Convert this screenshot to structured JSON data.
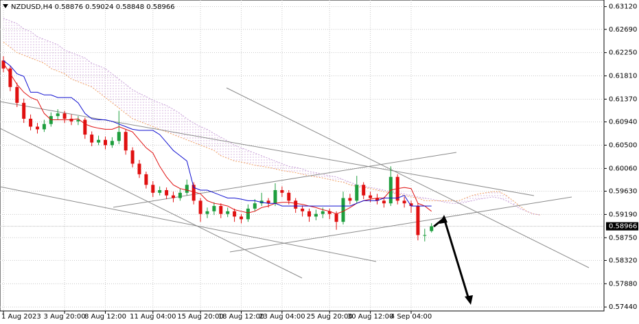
{
  "chart_data": {
    "type": "candlestick",
    "title": "NZDUSD,H4 0.58876 0.59024 0.58848 0.58966",
    "categories": [
      "1 Aug 2023",
      null,
      null,
      null,
      null,
      null,
      null,
      null,
      null,
      "3 Aug 20:00",
      null,
      null,
      null,
      null,
      null,
      "8 Aug 12:00",
      null,
      null,
      null,
      null,
      null,
      null,
      "11 Aug 04:00",
      null,
      null,
      null,
      null,
      null,
      null,
      "15 Aug 20:00",
      null,
      null,
      null,
      null,
      null,
      "18 Aug 12:00",
      null,
      null,
      null,
      null,
      null,
      "23 Aug 04:00",
      null,
      null,
      null,
      null,
      null,
      null,
      "25 Aug 20:00",
      null,
      null,
      null,
      null,
      null,
      "30 Aug 12:00",
      null,
      null,
      null,
      null,
      null,
      "4 Sep 04:00",
      null,
      null,
      null
    ],
    "ohlc": [
      [
        0.621,
        0.6218,
        0.6188,
        0.6195
      ],
      [
        0.6195,
        0.62,
        0.6152,
        0.616
      ],
      [
        0.616,
        0.6168,
        0.6122,
        0.613
      ],
      [
        0.613,
        0.6138,
        0.6092,
        0.61
      ],
      [
        0.61,
        0.6108,
        0.6078,
        0.6085
      ],
      [
        0.6085,
        0.6092,
        0.6072,
        0.608
      ],
      [
        0.608,
        0.6098,
        0.6075,
        0.609
      ],
      [
        0.609,
        0.6112,
        0.6085,
        0.6105
      ],
      [
        0.6105,
        0.6118,
        0.6098,
        0.611
      ],
      [
        0.611,
        0.6115,
        0.6092,
        0.61
      ],
      [
        0.61,
        0.6108,
        0.6088,
        0.6095
      ],
      [
        0.6095,
        0.6105,
        0.6088,
        0.6098
      ],
      [
        0.6098,
        0.6102,
        0.6062,
        0.607
      ],
      [
        0.607,
        0.6076,
        0.6048,
        0.6055
      ],
      [
        0.6055,
        0.6068,
        0.605,
        0.606
      ],
      [
        0.606,
        0.6066,
        0.6042,
        0.605
      ],
      [
        0.605,
        0.6065,
        0.6045,
        0.6058
      ],
      [
        0.6058,
        0.6115,
        0.6052,
        0.6075
      ],
      [
        0.6075,
        0.608,
        0.6032,
        0.604
      ],
      [
        0.604,
        0.6046,
        0.6008,
        0.6015
      ],
      [
        0.6015,
        0.6022,
        0.5988,
        0.5995
      ],
      [
        0.5995,
        0.6,
        0.5968,
        0.5975
      ],
      [
        0.5975,
        0.5982,
        0.5952,
        0.596
      ],
      [
        0.596,
        0.5972,
        0.5955,
        0.5965
      ],
      [
        0.5965,
        0.597,
        0.5948,
        0.5955
      ],
      [
        0.5955,
        0.5962,
        0.5942,
        0.595
      ],
      [
        0.595,
        0.5968,
        0.5945,
        0.596
      ],
      [
        0.596,
        0.5985,
        0.5955,
        0.5975
      ],
      [
        0.5975,
        0.598,
        0.5938,
        0.5945
      ],
      [
        0.5945,
        0.595,
        0.5905,
        0.592
      ],
      [
        0.592,
        0.5932,
        0.5912,
        0.5925
      ],
      [
        0.5925,
        0.5942,
        0.5918,
        0.5935
      ],
      [
        0.5935,
        0.594,
        0.5912,
        0.592
      ],
      [
        0.592,
        0.5932,
        0.5914,
        0.5925
      ],
      [
        0.5925,
        0.593,
        0.5905,
        0.5915
      ],
      [
        0.5915,
        0.592,
        0.5902,
        0.591
      ],
      [
        0.591,
        0.5938,
        0.5905,
        0.593
      ],
      [
        0.593,
        0.5948,
        0.5925,
        0.594
      ],
      [
        0.594,
        0.596,
        0.5935,
        0.5945
      ],
      [
        0.5945,
        0.595,
        0.5932,
        0.594
      ],
      [
        0.594,
        0.5978,
        0.5935,
        0.5965
      ],
      [
        0.5965,
        0.5972,
        0.5952,
        0.596
      ],
      [
        0.596,
        0.5965,
        0.5938,
        0.5945
      ],
      [
        0.5945,
        0.595,
        0.5922,
        0.593
      ],
      [
        0.593,
        0.5936,
        0.5915,
        0.5925
      ],
      [
        0.5925,
        0.593,
        0.5905,
        0.5915
      ],
      [
        0.5915,
        0.5928,
        0.5908,
        0.592
      ],
      [
        0.592,
        0.5932,
        0.5912,
        0.5925
      ],
      [
        0.5925,
        0.593,
        0.591,
        0.592
      ],
      [
        0.592,
        0.5925,
        0.589,
        0.5905
      ],
      [
        0.5905,
        0.5962,
        0.59,
        0.595
      ],
      [
        0.595,
        0.5958,
        0.5938,
        0.5945
      ],
      [
        0.5945,
        0.5992,
        0.594,
        0.5975
      ],
      [
        0.5975,
        0.598,
        0.5948,
        0.5955
      ],
      [
        0.5955,
        0.5962,
        0.5942,
        0.595
      ],
      [
        0.595,
        0.5958,
        0.5938,
        0.5945
      ],
      [
        0.5945,
        0.5952,
        0.5932,
        0.594
      ],
      [
        0.594,
        0.601,
        0.5935,
        0.599
      ],
      [
        0.599,
        0.5995,
        0.5938,
        0.5945
      ],
      [
        0.5945,
        0.5952,
        0.5932,
        0.594
      ],
      [
        0.594,
        0.5945,
        0.5922,
        0.5935
      ],
      [
        0.5935,
        0.594,
        0.587,
        0.588
      ],
      [
        0.588,
        0.5892,
        0.5868,
        0.588
      ],
      [
        0.58876,
        0.59024,
        0.58848,
        0.58966
      ]
    ],
    "up_color": "#1e9e3e",
    "down_color": "#e01010",
    "lines": [
      {
        "color": "#e01010",
        "values": [
          0.6205,
          0.6185,
          0.6165,
          0.615,
          0.614,
          0.6135,
          0.611,
          0.6098,
          0.6098,
          0.6098,
          0.6098,
          0.61,
          0.609,
          0.6085,
          0.6082,
          0.608,
          0.608,
          0.6085,
          0.608,
          0.6075,
          0.606,
          0.6045,
          0.6035,
          0.601,
          0.599,
          0.5975,
          0.5968,
          0.5965,
          0.5962,
          0.5958,
          0.5945,
          0.594,
          0.5938,
          0.5935,
          0.5928,
          0.5925,
          0.5922,
          0.5925,
          0.5932,
          0.5935,
          0.594,
          0.5942,
          0.5942,
          0.594,
          0.5938,
          0.5935,
          0.5932,
          0.5928,
          0.5925,
          0.592,
          0.5925,
          0.5932,
          0.594,
          0.5945,
          0.5948,
          0.595,
          0.595,
          0.5965,
          0.5968,
          0.597,
          0.5968,
          0.594,
          0.5935,
          0.5925
        ]
      },
      {
        "color": "#1010d0",
        "values": [
          0.621,
          0.62,
          0.6185,
          0.618,
          0.615,
          0.615,
          0.6145,
          0.6145,
          0.614,
          0.614,
          0.614,
          0.613,
          0.611,
          0.61,
          0.6098,
          0.6098,
          0.6095,
          0.609,
          0.6085,
          0.608,
          0.6078,
          0.6078,
          0.6078,
          0.607,
          0.6055,
          0.604,
          0.603,
          0.602,
          0.597,
          0.5965,
          0.5965,
          0.596,
          0.5955,
          0.595,
          0.595,
          0.5948,
          0.5945,
          0.5945,
          0.5942,
          0.594,
          0.594,
          0.5935,
          0.5935,
          0.5935,
          0.5935,
          0.5935,
          0.5935,
          0.5935,
          0.5935,
          0.5935,
          0.5935,
          0.5935,
          0.594,
          0.5945,
          0.5945,
          0.5945,
          0.595,
          0.595,
          0.595,
          0.5955,
          0.5935,
          0.5935,
          0.5935,
          0.5935
        ]
      }
    ],
    "cloud": [
      {
        "color": "#f0a060",
        "values": [
          0.6245,
          0.6235,
          0.6225,
          0.622,
          0.6215,
          0.621,
          0.6205,
          0.6195,
          0.619,
          0.6185,
          0.6175,
          0.617,
          0.6165,
          0.616,
          0.615,
          0.614,
          0.613,
          0.612,
          0.611,
          0.61,
          0.6095,
          0.609,
          0.6085,
          0.608,
          0.6075,
          0.607,
          0.6065,
          0.606,
          0.6055,
          0.605,
          0.6045,
          0.604,
          0.603,
          0.6025,
          0.602,
          0.6018,
          0.6015,
          0.6012,
          0.601,
          0.6008,
          0.6005,
          0.6002,
          0.6,
          0.5998,
          0.5995,
          0.5992,
          0.599,
          0.5988,
          0.5985,
          0.5982,
          0.598,
          0.5975,
          0.5972,
          0.597,
          0.5968,
          0.5965,
          0.5962,
          0.596,
          0.5958,
          0.5955,
          0.5952,
          0.595,
          0.5945,
          0.5945,
          0.5945,
          0.5945,
          0.5945,
          0.5945,
          0.595,
          0.5955,
          0.5958,
          0.596,
          0.5962,
          0.5962,
          0.5955,
          0.5945,
          0.5935,
          0.5925,
          0.592,
          0.5918
        ]
      },
      {
        "color": "#c8a0d8",
        "values": [
          0.629,
          0.6285,
          0.628,
          0.627,
          0.6265,
          0.6255,
          0.625,
          0.6245,
          0.624,
          0.623,
          0.6225,
          0.622,
          0.6215,
          0.6205,
          0.62,
          0.6195,
          0.6185,
          0.6175,
          0.6165,
          0.6155,
          0.6148,
          0.6142,
          0.6135,
          0.613,
          0.6125,
          0.6118,
          0.611,
          0.61,
          0.6092,
          0.6085,
          0.608,
          0.6072,
          0.6065,
          0.6058,
          0.605,
          0.6045,
          0.604,
          0.6035,
          0.603,
          0.6025,
          0.602,
          0.6015,
          0.601,
          0.6008,
          0.6005,
          0.6,
          0.5998,
          0.5995,
          0.5992,
          0.599,
          0.5985,
          0.598,
          0.5975,
          0.5972,
          0.597,
          0.5968,
          0.5965,
          0.5962,
          0.596,
          0.5958,
          0.5955,
          0.5952,
          0.595,
          0.5948,
          0.5945,
          0.5942,
          0.594,
          0.594,
          0.5942,
          0.5945,
          0.5948,
          0.595,
          0.5952,
          0.595,
          0.5945,
          0.5938,
          0.593,
          0.5925,
          0.592,
          0.5918
        ]
      }
    ],
    "last_price": 0.58966,
    "ylim": [
      0.63245,
      0.57365
    ],
    "yticks": [
      {
        "value": 0.6312,
        "label": "0.63120"
      },
      {
        "value": 0.6269,
        "label": "0.62690"
      },
      {
        "value": 0.6225,
        "label": "0.62250"
      },
      {
        "value": 0.6181,
        "label": "0.61810"
      },
      {
        "value": 0.6137,
        "label": "0.61370"
      },
      {
        "value": 0.6094,
        "label": "0.60940"
      },
      {
        "value": 0.605,
        "label": "0.60500"
      },
      {
        "value": 0.6006,
        "label": "0.60060"
      },
      {
        "value": 0.5963,
        "label": "0.59630"
      },
      {
        "value": 0.5919,
        "label": "0.59190"
      },
      {
        "value": 0.5875,
        "label": "0.58750"
      },
      {
        "value": 0.5832,
        "label": "0.58320"
      },
      {
        "value": 0.5788,
        "label": "0.57880"
      },
      {
        "value": 0.5744,
        "label": "0.57440"
      }
    ],
    "grid": true
  }
}
